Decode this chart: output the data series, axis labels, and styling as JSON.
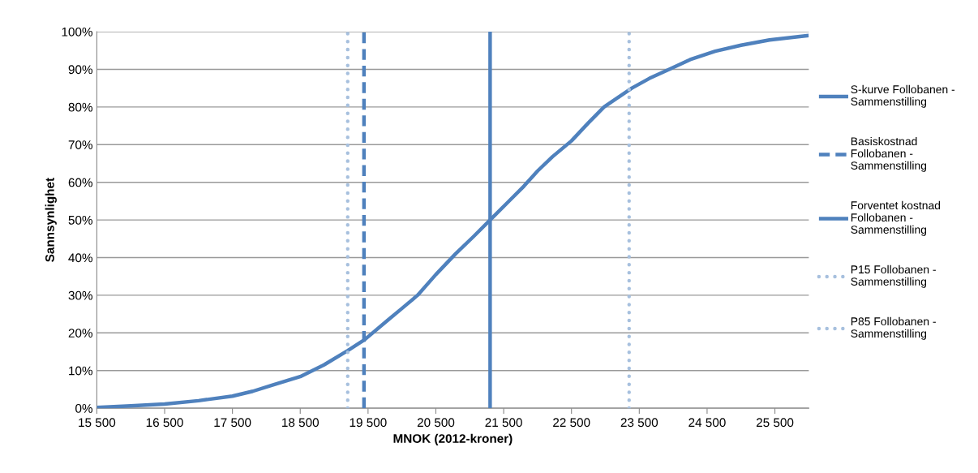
{
  "chart_data": {
    "type": "line",
    "xlabel": "MNOK (2012-kroner)",
    "ylabel": "Sannsynlighet",
    "xlim": [
      15500,
      26000
    ],
    "xticks": [
      {
        "value": 15500,
        "label": "15 500"
      },
      {
        "value": 16500,
        "label": "16 500"
      },
      {
        "value": 17500,
        "label": "17 500"
      },
      {
        "value": 18500,
        "label": "18 500"
      },
      {
        "value": 19500,
        "label": "19 500"
      },
      {
        "value": 20500,
        "label": "20 500"
      },
      {
        "value": 21500,
        "label": "21 500"
      },
      {
        "value": 22500,
        "label": "22 500"
      },
      {
        "value": 23500,
        "label": "23 500"
      },
      {
        "value": 24500,
        "label": "24 500"
      },
      {
        "value": 25500,
        "label": "25 500"
      }
    ],
    "ylim": [
      0,
      100
    ],
    "yticks": [
      {
        "value": 0,
        "label": "0%"
      },
      {
        "value": 10,
        "label": "10%"
      },
      {
        "value": 20,
        "label": "20%"
      },
      {
        "value": 30,
        "label": "30%"
      },
      {
        "value": 40,
        "label": "40%"
      },
      {
        "value": 50,
        "label": "50%"
      },
      {
        "value": 60,
        "label": "60%"
      },
      {
        "value": 70,
        "label": "70%"
      },
      {
        "value": 80,
        "label": "80%"
      },
      {
        "value": 90,
        "label": "90%"
      },
      {
        "value": 100,
        "label": "100%"
      }
    ],
    "grid": "y",
    "legend": "right",
    "marker": "none",
    "series": [
      {
        "name": "S-kurve Follobanen -\nSammenstilling",
        "color": "#4f81bd",
        "line_style": "solid",
        "x": [
          15500,
          16000,
          16500,
          17000,
          17500,
          17800,
          18100,
          18500,
          18850,
          19200,
          19450,
          19800,
          20000,
          20230,
          20500,
          20790,
          21050,
          21300,
          21550,
          21800,
          22000,
          22220,
          22500,
          22750,
          22980,
          23200,
          23390,
          23650,
          23940,
          24250,
          24620,
          25000,
          25420,
          26000
        ],
        "values": [
          0.2,
          0.6,
          1.1,
          2.0,
          3.2,
          4.5,
          6.2,
          8.4,
          11.5,
          15.3,
          18.2,
          23.5,
          26.5,
          30,
          35.5,
          41,
          45.5,
          50,
          54.5,
          59,
          63,
          66.8,
          71,
          75.8,
          80,
          82.7,
          85,
          87.6,
          90,
          92.6,
          94.8,
          96.4,
          97.8,
          99
        ]
      },
      {
        "name": "Basiskostnad\nFollobanen -\nSammenstilling",
        "color": "#4f81bd",
        "line_style": "dashed",
        "x": [
          19440,
          19440
        ],
        "values": [
          0,
          100
        ]
      },
      {
        "name": "Forventet kostnad\nFollobanen -\nSammenstilling",
        "color": "#4f81bd",
        "line_style": "solid",
        "x": [
          21300,
          21300
        ],
        "values": [
          0,
          100
        ]
      },
      {
        "name": "P15 Follobanen -\nSammenstilling",
        "color": "#a7c0de",
        "line_style": "dotted",
        "x": [
          19200,
          19200
        ],
        "values": [
          0,
          100
        ]
      },
      {
        "name": "P85 Follobanen -\nSammenstilling",
        "color": "#a7c0de",
        "line_style": "dotted",
        "x": [
          23350,
          23350
        ],
        "values": [
          0,
          100
        ]
      }
    ]
  }
}
